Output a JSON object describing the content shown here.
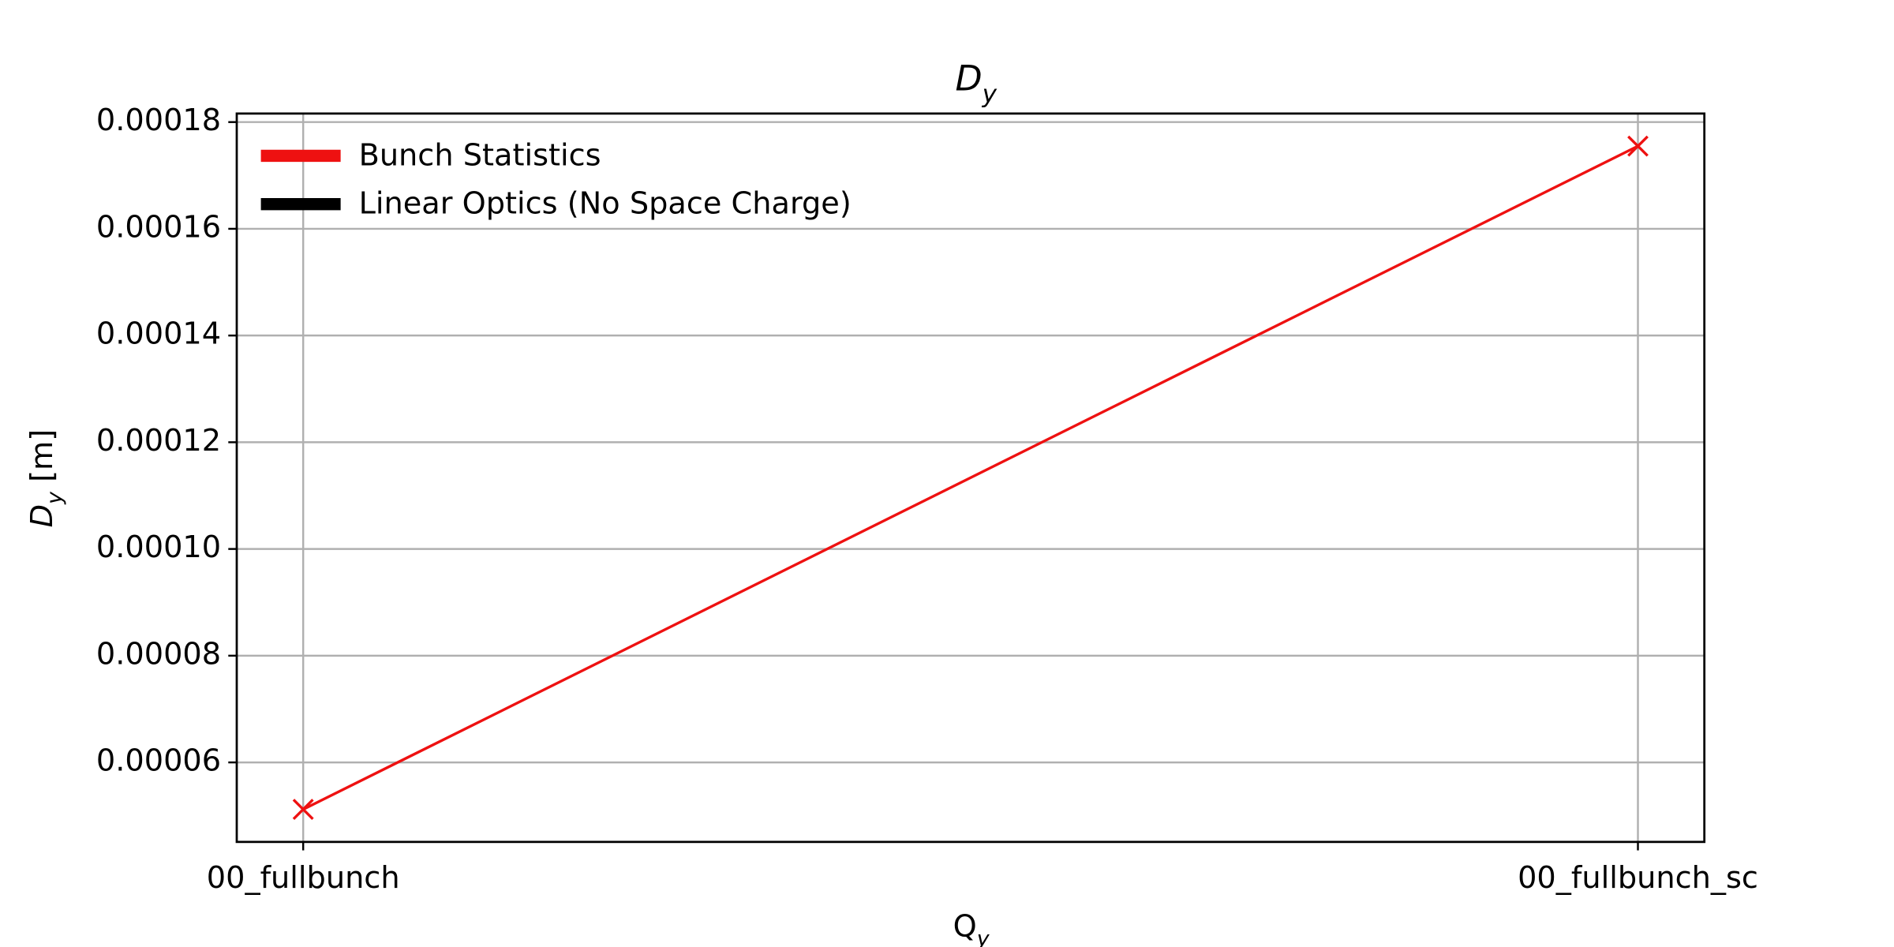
{
  "chart_data": {
    "type": "line",
    "title": "Dy",
    "x_label": "Qy",
    "y_label": "Dy [m]",
    "categories": [
      "00_fullbunch",
      "00_fullbunch_sc"
    ],
    "series": [
      {
        "name": "Bunch Statistics",
        "color": "#ee1111",
        "values": [
          5.12e-05,
          0.0001755
        ]
      },
      {
        "name": "Linear Optics (No Space Charge)",
        "color": "#000000",
        "values": [
          null,
          null
        ]
      }
    ],
    "ylim": [
      4.51e-05,
      0.0001816
    ],
    "yticks": [
      6e-05,
      8e-05,
      {
        "value": 0.0001,
        "label": "0.00010"
      },
      0.00012,
      0.00014,
      0.00016,
      0.00018
    ],
    "grid": true,
    "legend": "upper left"
  }
}
